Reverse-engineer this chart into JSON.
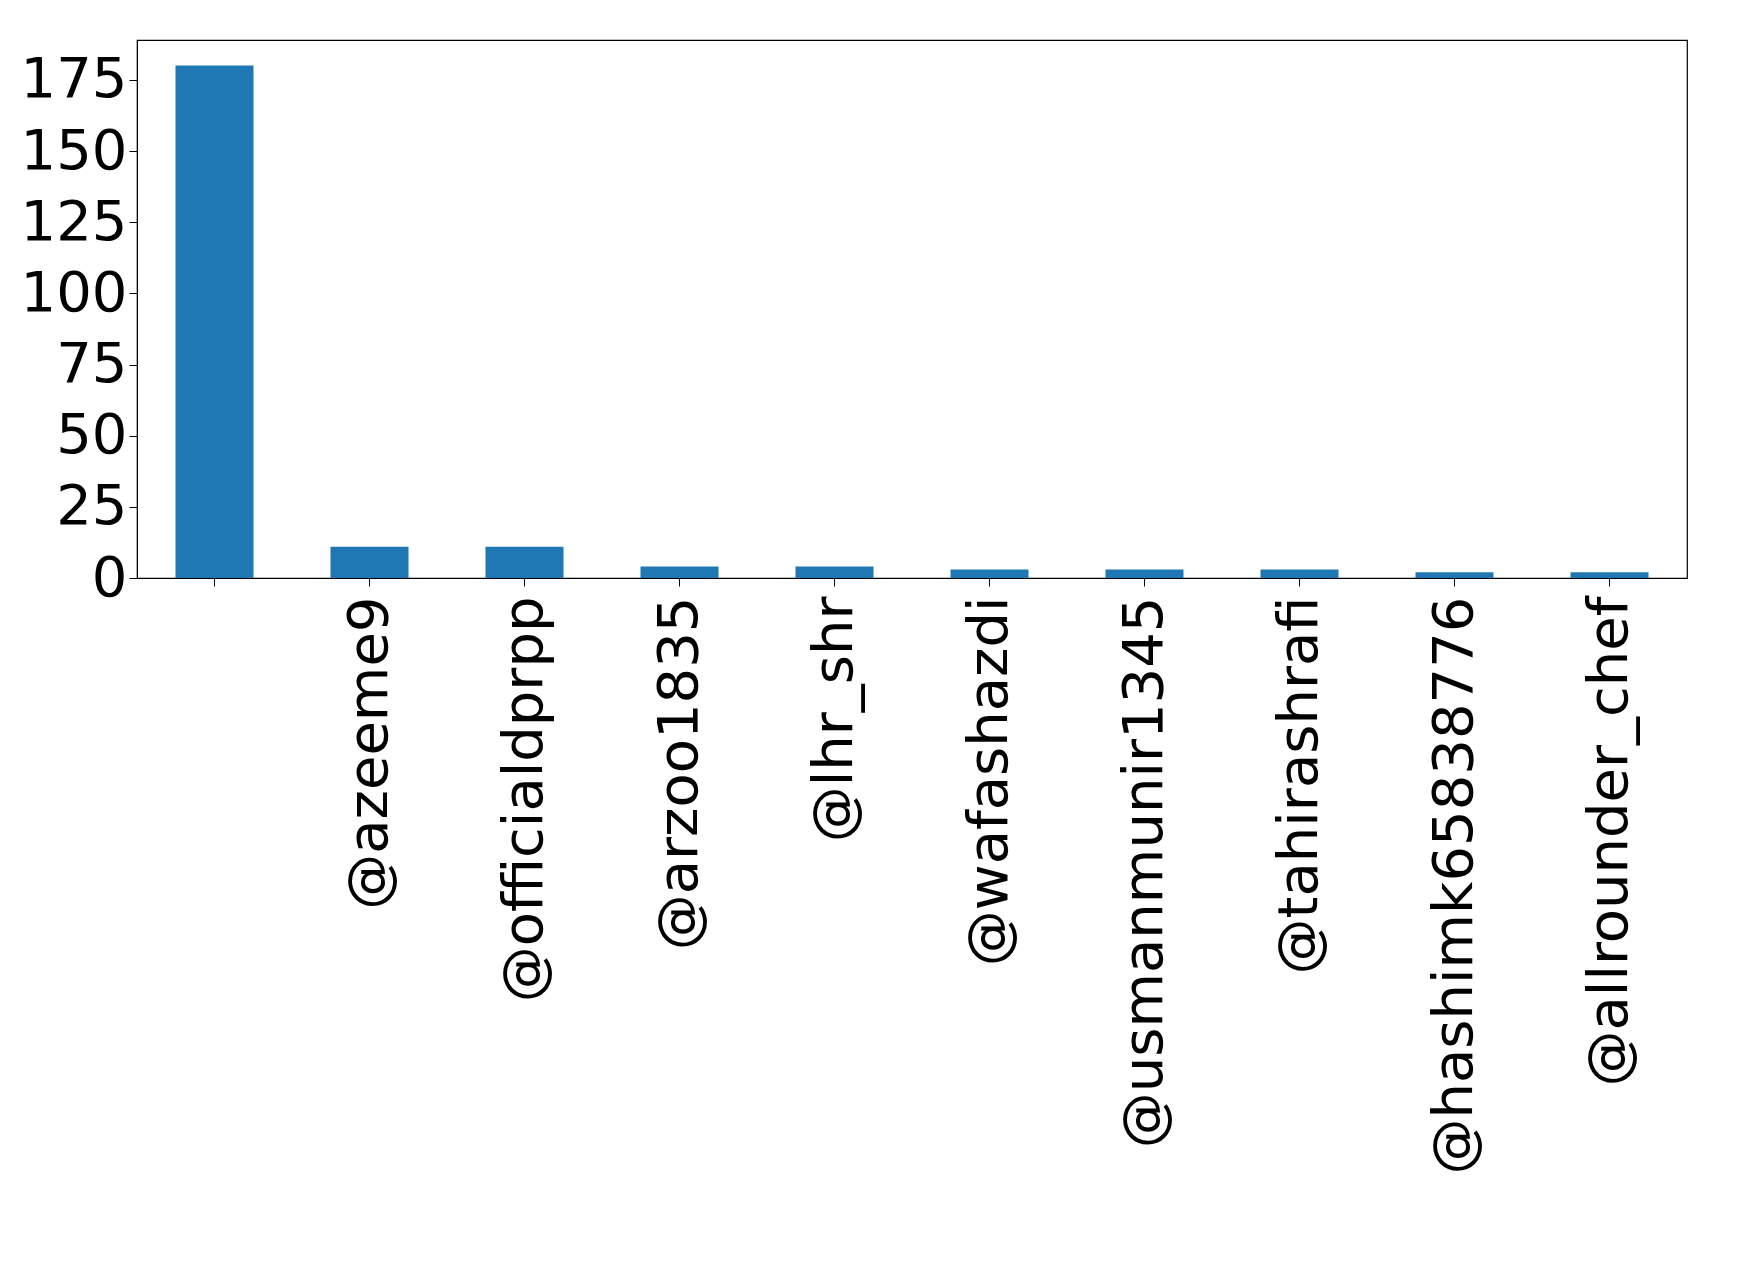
{
  "chart_data": {
    "type": "bar",
    "categories": [
      null,
      "@azeeme9",
      "@officialdprpp",
      "@arzoo1835",
      "@lhr_shr",
      "@wafashazdi",
      "@usmanmunir1345",
      "@tahirashrafi",
      "@hashimk65838776",
      "@allrounder_chef"
    ],
    "values": [
      180,
      11,
      11,
      4,
      4,
      3,
      3,
      3,
      2,
      2
    ],
    "color": "#1f77b4",
    "ylim": [
      0,
      189
    ],
    "yticks": [
      0,
      25,
      50,
      75,
      100,
      125,
      150,
      175
    ],
    "grid": false
  }
}
